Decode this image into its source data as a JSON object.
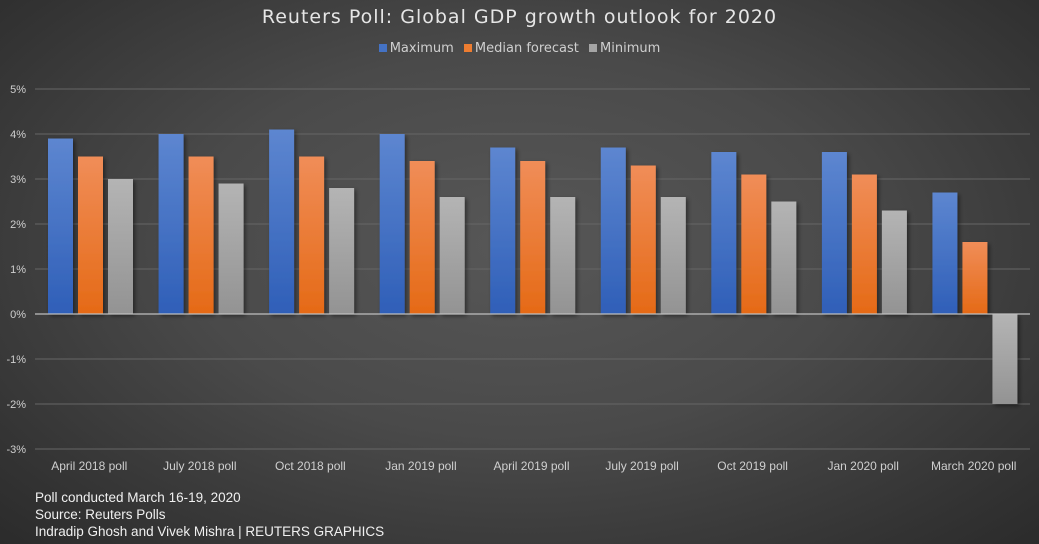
{
  "chart_data": {
    "type": "bar",
    "title": "Reuters Poll: Global GDP growth outlook for 2020",
    "xlabel": "",
    "ylabel": "",
    "ylim": [
      -3,
      5
    ],
    "yticks": [
      5,
      4,
      3,
      2,
      1,
      0,
      -1,
      -2,
      -3
    ],
    "ytick_labels": [
      "5%",
      "4%",
      "3%",
      "2%",
      "1%",
      "0%",
      "-1%",
      "-2%",
      "-3%"
    ],
    "grid": true,
    "legend_position": "top-center",
    "categories": [
      "April 2018 poll",
      "July 2018 poll",
      "Oct 2018 poll",
      "Jan 2019 poll",
      "April 2019 poll",
      "July 2019 poll",
      "Oct 2019 poll",
      "Jan 2020 poll",
      "March 2020 poll"
    ],
    "series": [
      {
        "name": "Maximum",
        "color": "#4472c4",
        "values": [
          3.9,
          4.0,
          4.1,
          4.0,
          3.7,
          3.7,
          3.6,
          3.6,
          2.7
        ]
      },
      {
        "name": "Median forecast",
        "color": "#ed7d31",
        "values": [
          3.5,
          3.5,
          3.5,
          3.4,
          3.4,
          3.3,
          3.1,
          3.1,
          1.6
        ]
      },
      {
        "name": "Minimum",
        "color": "#a5a5a5",
        "values": [
          3.0,
          2.9,
          2.8,
          2.6,
          2.6,
          2.6,
          2.5,
          2.3,
          -2.0
        ]
      }
    ]
  },
  "footer": {
    "line1": "Poll conducted March 16-19, 2020",
    "line2": "Source: Reuters Polls",
    "line3": "Indradip Ghosh and Vivek Mishra | REUTERS GRAPHICS"
  }
}
